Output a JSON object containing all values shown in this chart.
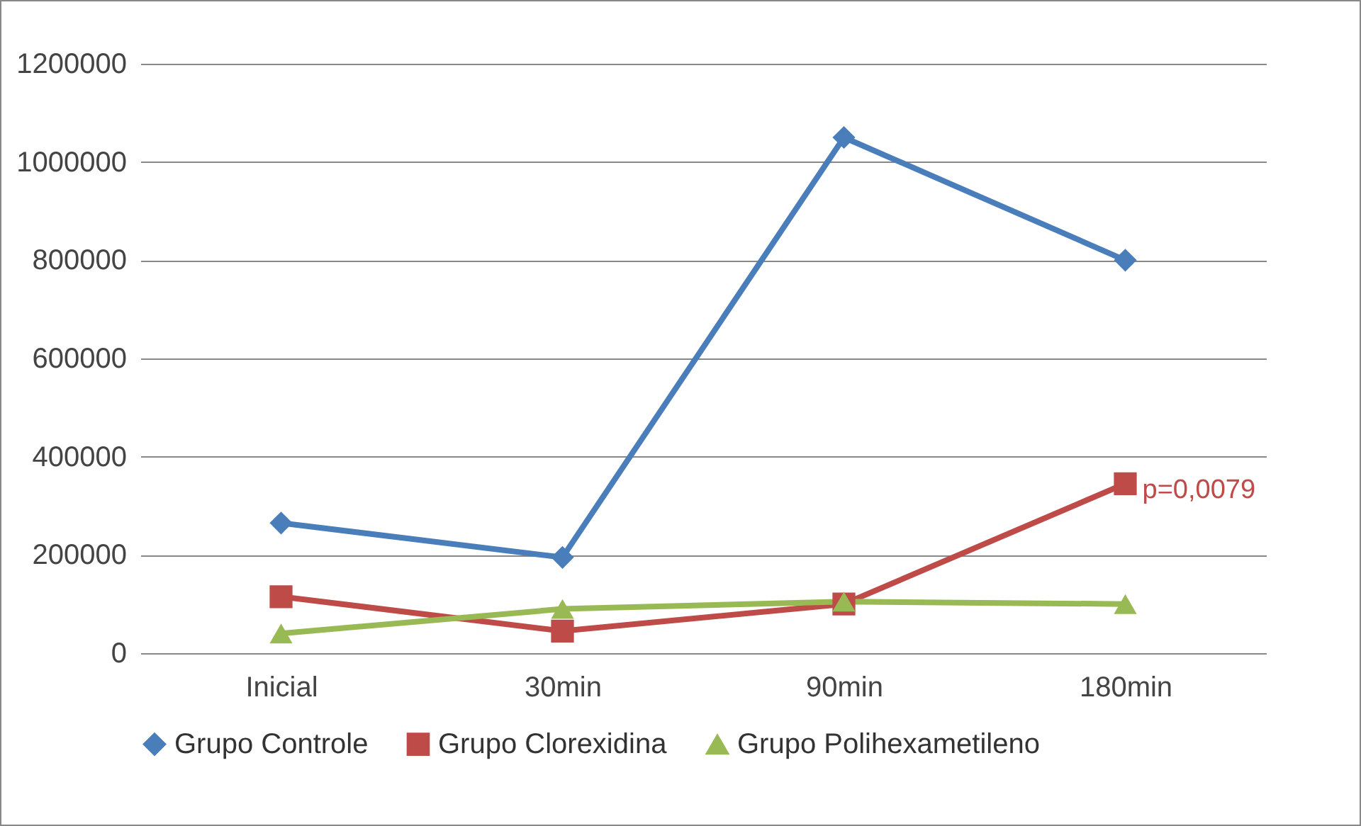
{
  "chart_data": {
    "type": "line",
    "categories": [
      "Inicial",
      "30min",
      "90min",
      "180min"
    ],
    "series": [
      {
        "name": "Grupo Controle",
        "color": "#4a7ebb",
        "marker": "diamond",
        "values": [
          265000,
          195000,
          1050000,
          800000
        ]
      },
      {
        "name": "Grupo Clorexidina",
        "color": "#be4b48",
        "marker": "square",
        "values": [
          115000,
          45000,
          100000,
          345000
        ]
      },
      {
        "name": "Grupo Polihexametileno",
        "color": "#98b954",
        "marker": "triangle",
        "values": [
          40000,
          90000,
          105000,
          100000
        ]
      }
    ],
    "ylim": [
      0,
      1200000
    ],
    "yticks": [
      0,
      200000,
      400000,
      600000,
      800000,
      1000000,
      1200000
    ],
    "grid": "y",
    "legend": "bottom",
    "line_style": "solid",
    "annotations": [
      {
        "text": "p=0,0079",
        "x": "180min",
        "y": 345000
      }
    ]
  }
}
